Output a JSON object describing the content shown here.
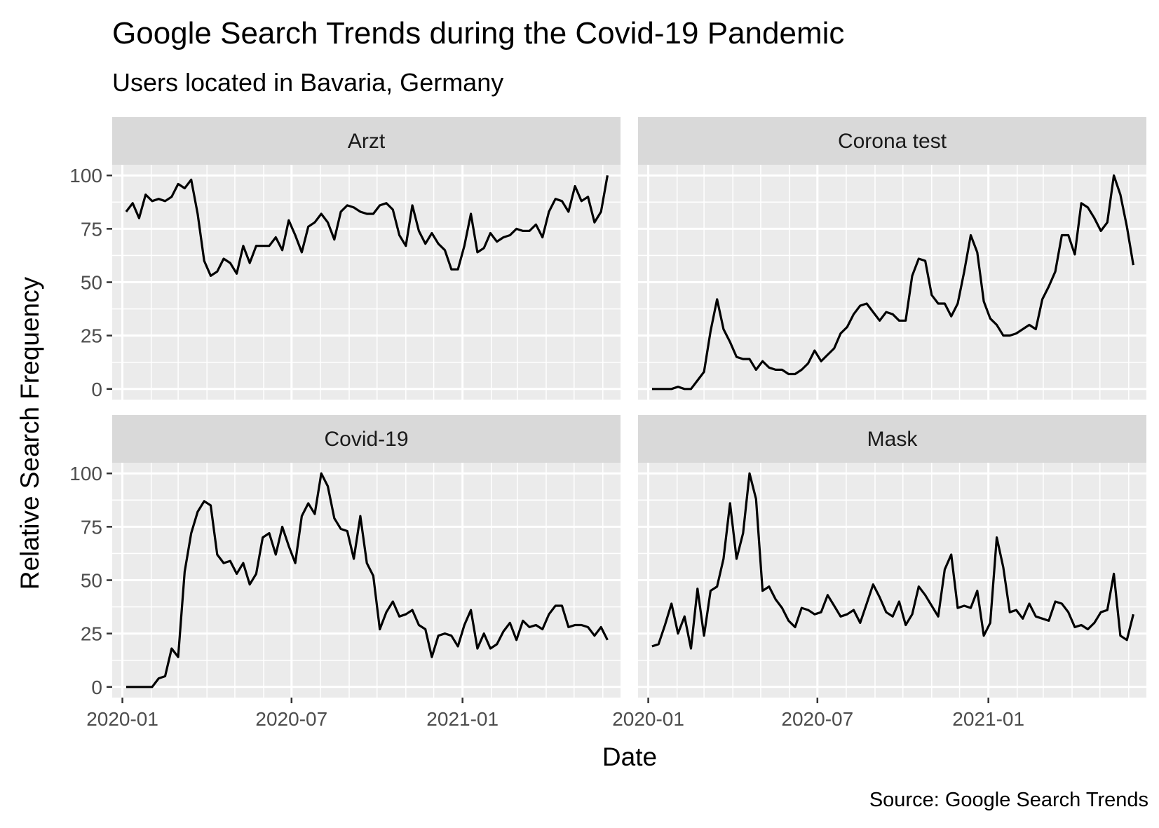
{
  "chart_data": {
    "type": "line",
    "title": "Google Search Trends during the Covid-19 Pandemic",
    "subtitle": "Users located in Bavaria, Germany",
    "xlabel": "Date",
    "ylabel": "Relative Search Frequency",
    "caption": "Source: Google Search Trends",
    "x_ticks": [
      "2020-01",
      "2020-07",
      "2021-01"
    ],
    "y_ticks": [
      "0",
      "25",
      "50",
      "75",
      "100"
    ],
    "ylim": [
      -5,
      105
    ],
    "xlim": [
      "2019-12-21",
      "2021-06-20"
    ],
    "grid": true,
    "x_start": "2020-01-05",
    "x_step_days": 7,
    "facets": [
      {
        "name": "Arzt",
        "values": [
          83,
          87,
          80,
          91,
          88,
          89,
          88,
          90,
          96,
          94,
          98,
          82,
          60,
          53,
          55,
          61,
          59,
          54,
          67,
          59,
          67,
          67,
          67,
          71,
          65,
          79,
          72,
          64,
          76,
          78,
          82,
          78,
          70,
          83,
          86,
          85,
          83,
          82,
          82,
          86,
          87,
          84,
          72,
          67,
          86,
          74,
          68,
          73,
          68,
          65,
          56,
          56,
          67,
          82,
          64,
          66,
          73,
          69,
          71,
          72,
          75,
          74,
          74,
          77,
          71,
          83,
          89,
          88,
          83,
          95,
          88,
          90,
          78,
          83,
          100
        ]
      },
      {
        "name": "Corona test",
        "values": [
          0,
          0,
          0,
          0,
          1,
          0,
          0,
          4,
          8,
          27,
          42,
          28,
          22,
          15,
          14,
          14,
          9,
          13,
          10,
          9,
          9,
          7,
          7,
          9,
          12,
          18,
          13,
          16,
          19,
          26,
          29,
          35,
          39,
          40,
          36,
          32,
          36,
          35,
          32,
          32,
          53,
          61,
          60,
          44,
          40,
          40,
          34,
          40,
          55,
          72,
          64,
          41,
          33,
          30,
          25,
          25,
          26,
          28,
          30,
          28,
          42,
          48,
          55,
          72,
          72,
          63,
          87,
          85,
          80,
          74,
          78,
          100,
          91,
          76,
          58
        ]
      },
      {
        "name": "Covid-19",
        "values": [
          0,
          0,
          0,
          0,
          0,
          4,
          5,
          18,
          14,
          54,
          72,
          82,
          87,
          85,
          62,
          58,
          59,
          53,
          58,
          48,
          53,
          70,
          72,
          62,
          75,
          66,
          58,
          80,
          86,
          81,
          100,
          94,
          79,
          74,
          73,
          60,
          80,
          58,
          52,
          27,
          35,
          40,
          33,
          34,
          36,
          29,
          27,
          14,
          24,
          25,
          24,
          19,
          29,
          36,
          18,
          25,
          18,
          20,
          26,
          30,
          22,
          31,
          28,
          29,
          27,
          34,
          38,
          38,
          28,
          29,
          29,
          28,
          24,
          28,
          22
        ]
      },
      {
        "name": "Mask",
        "values": [
          19,
          20,
          29,
          39,
          25,
          33,
          18,
          46,
          24,
          45,
          47,
          60,
          86,
          60,
          72,
          100,
          88,
          45,
          47,
          41,
          37,
          31,
          28,
          37,
          36,
          34,
          35,
          43,
          38,
          33,
          34,
          36,
          30,
          39,
          48,
          42,
          35,
          33,
          40,
          29,
          34,
          47,
          43,
          38,
          33,
          55,
          62,
          37,
          38,
          37,
          45,
          24,
          30,
          70,
          56,
          35,
          36,
          32,
          39,
          33,
          32,
          31,
          40,
          39,
          35,
          28,
          29,
          27,
          30,
          35,
          36,
          53,
          24,
          22,
          34
        ]
      }
    ]
  }
}
